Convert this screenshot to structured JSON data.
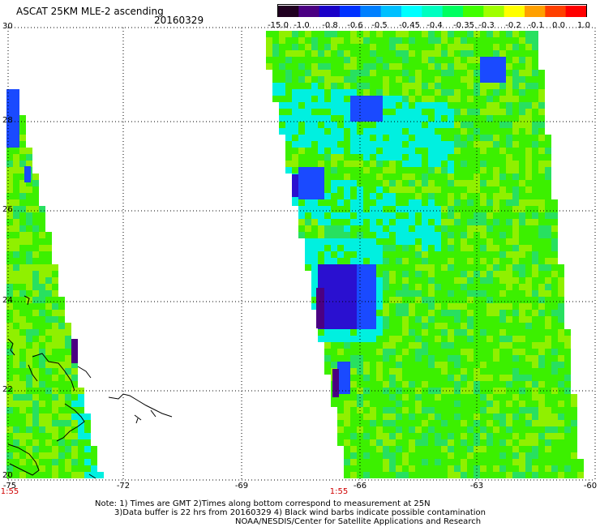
{
  "header": {
    "title": "ASCAT 25KM MLE-2 ascending",
    "date": "20160329"
  },
  "colorbar": {
    "labels": [
      "-15.0",
      "-1.0",
      "-0.8",
      "-0.6",
      "-0.5",
      "-0.45",
      "-0.4",
      "-0.35",
      "-0.3",
      "-0.2",
      "-0.1",
      "0.0",
      "1.0"
    ],
    "colors": [
      "#200020",
      "#4b0082",
      "#1a00c8",
      "#0032ff",
      "#0080ff",
      "#00c0ff",
      "#00ffff",
      "#00ffc0",
      "#00ff60",
      "#40ff00",
      "#a0ff00",
      "#ffff00",
      "#ffa000",
      "#ff4000",
      "#ff0000"
    ]
  },
  "map": {
    "lat_labels": [
      "30",
      "28",
      "26",
      "24",
      "22",
      "20"
    ],
    "lon_labels": [
      "-75",
      "-72",
      "-69",
      "-66",
      "-63",
      "-60"
    ],
    "time_labels": [
      "1:55",
      "1:55"
    ],
    "field_colors": {
      "base": "#3cf000",
      "light": "#90f000",
      "mid": "#28e060",
      "cyan": "#00f0e0",
      "blue": "#1a4aff",
      "darkblue": "#2a10d0",
      "violet": "#4b0082"
    }
  },
  "notes": {
    "line1": "Note: 1) Times are GMT 2)Times along bottom correspond to measurement at 25N",
    "line2": "3)Data buffer is 22 hrs from 20160329 4) Black wind barbs indicate possible contamination",
    "line3": "NOAA/NESDIS/Center for Satellite Applications and Research"
  }
}
